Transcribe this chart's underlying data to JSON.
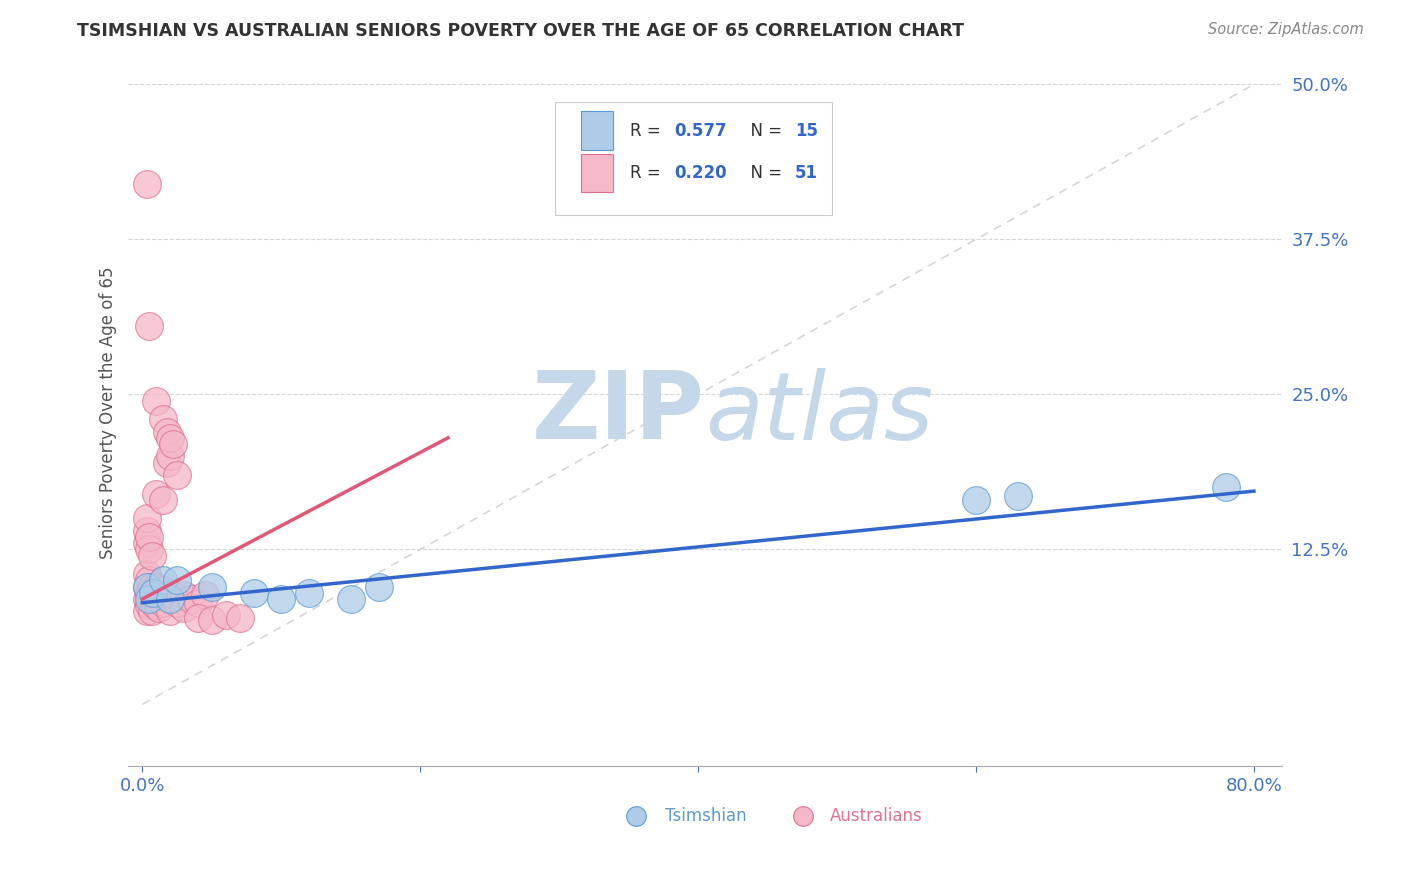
{
  "title": "TSIMSHIAN VS AUSTRALIAN SENIORS POVERTY OVER THE AGE OF 65 CORRELATION CHART",
  "source_text": "Source: ZipAtlas.com",
  "ylabel": "Seniors Poverty Over the Age of 65",
  "xlim": [
    -0.01,
    0.82
  ],
  "ylim": [
    -0.05,
    0.52
  ],
  "ytick_positions": [
    0.125,
    0.25,
    0.375,
    0.5
  ],
  "ytick_labels": [
    "12.5%",
    "25.0%",
    "37.5%",
    "50.0%"
  ],
  "xtick_positions": [
    0.0,
    0.2,
    0.4,
    0.6,
    0.8
  ],
  "tsimshian_color": "#aecce8",
  "tsimshian_edge_color": "#5b9bd5",
  "australians_color": "#f4b8c8",
  "australians_edge_color": "#e07090",
  "tsimshian_line_color": "#3366cc",
  "australians_line_color": "#e05878",
  "watermark_zip_color": "#c5d8ea",
  "watermark_atlas_color": "#c5d8ea",
  "legend_R_color": "#3366cc",
  "legend_N_color": "#3366cc",
  "background_color": "#ffffff",
  "grid_color": "#cccccc",
  "title_color": "#333333",
  "axis_label_color": "#555555",
  "tick_color": "#4472c4",
  "tsimshian_scatter": [
    [
      0.003,
      0.095
    ],
    [
      0.005,
      0.085
    ],
    [
      0.008,
      0.09
    ],
    [
      0.015,
      0.1
    ],
    [
      0.02,
      0.085
    ],
    [
      0.025,
      0.1
    ],
    [
      0.05,
      0.095
    ],
    [
      0.08,
      0.09
    ],
    [
      0.1,
      0.085
    ],
    [
      0.12,
      0.09
    ],
    [
      0.15,
      0.085
    ],
    [
      0.17,
      0.095
    ],
    [
      0.6,
      0.165
    ],
    [
      0.63,
      0.168
    ],
    [
      0.78,
      0.175
    ]
  ],
  "australians_scatter": [
    [
      0.003,
      0.105
    ],
    [
      0.003,
      0.095
    ],
    [
      0.003,
      0.085
    ],
    [
      0.003,
      0.075
    ],
    [
      0.005,
      0.1
    ],
    [
      0.005,
      0.09
    ],
    [
      0.005,
      0.08
    ],
    [
      0.007,
      0.095
    ],
    [
      0.007,
      0.085
    ],
    [
      0.007,
      0.075
    ],
    [
      0.009,
      0.09
    ],
    [
      0.009,
      0.08
    ],
    [
      0.01,
      0.095
    ],
    [
      0.01,
      0.085
    ],
    [
      0.012,
      0.088
    ],
    [
      0.012,
      0.078
    ],
    [
      0.015,
      0.092
    ],
    [
      0.015,
      0.082
    ],
    [
      0.018,
      0.088
    ],
    [
      0.02,
      0.085
    ],
    [
      0.02,
      0.075
    ],
    [
      0.022,
      0.088
    ],
    [
      0.025,
      0.082
    ],
    [
      0.03,
      0.088
    ],
    [
      0.03,
      0.078
    ],
    [
      0.035,
      0.085
    ],
    [
      0.04,
      0.082
    ],
    [
      0.045,
      0.088
    ],
    [
      0.003,
      0.13
    ],
    [
      0.003,
      0.14
    ],
    [
      0.003,
      0.15
    ],
    [
      0.005,
      0.125
    ],
    [
      0.005,
      0.135
    ],
    [
      0.007,
      0.12
    ],
    [
      0.01,
      0.17
    ],
    [
      0.015,
      0.165
    ],
    [
      0.018,
      0.195
    ],
    [
      0.02,
      0.2
    ],
    [
      0.025,
      0.185
    ],
    [
      0.003,
      0.42
    ],
    [
      0.005,
      0.305
    ],
    [
      0.01,
      0.245
    ],
    [
      0.015,
      0.23
    ],
    [
      0.018,
      0.22
    ],
    [
      0.02,
      0.215
    ],
    [
      0.022,
      0.21
    ],
    [
      0.04,
      0.07
    ],
    [
      0.05,
      0.068
    ],
    [
      0.06,
      0.072
    ],
    [
      0.07,
      0.07
    ]
  ],
  "tsim_line": [
    [
      0.0,
      0.082
    ],
    [
      0.8,
      0.172
    ]
  ],
  "aus_line": [
    [
      0.0,
      0.085
    ],
    [
      0.22,
      0.215
    ]
  ]
}
